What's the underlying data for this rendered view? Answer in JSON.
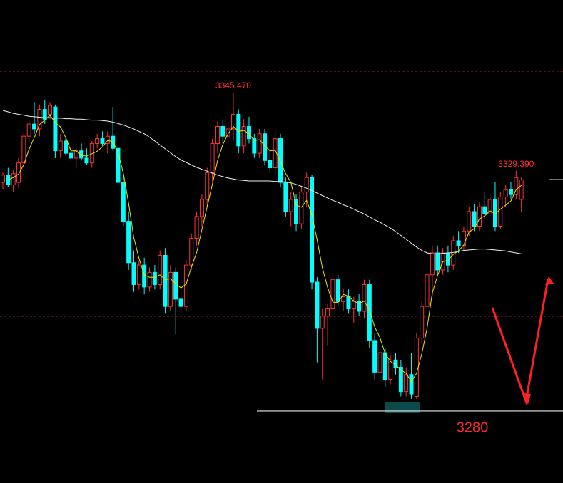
{
  "chart_data": {
    "type": "candlestick",
    "ylim": [
      3265.2,
      3364.5
    ],
    "up_color": "#ff3232",
    "down_color": "#00ffff",
    "open": [
      3327.0,
      3328.5,
      3326.5,
      3327.0,
      3331.0,
      3336.5,
      3339.0,
      3338.0,
      3342.0,
      3341.0,
      3342.5,
      3333.5,
      3335.5,
      3333.0,
      3332.0,
      3333.5,
      3332.0,
      3331.0,
      3335.0,
      3336.0,
      3335.0,
      3336.5,
      3334.0,
      3327.0,
      3319.0,
      3310.5,
      3306.0,
      3310.0,
      3305.5,
      3308.5,
      3306.0,
      3312.0,
      3301.5,
      3308.5,
      3303.0,
      3301.5,
      3310.0,
      3315.5,
      3320.0,
      3323.5,
      3329.0,
      3335.0,
      3338.5,
      3336.5,
      3338.0,
      3341.0,
      3334.5,
      3338.5,
      3336.0,
      3333.0,
      3337.0,
      3331.5,
      3330.0,
      3336.0,
      3327.0,
      3321.0,
      3323.5,
      3318.5,
      3325.0,
      3328.0,
      3306.5,
      3297.0,
      3299.5,
      3301.0,
      3307.0,
      3302.5,
      3303.5,
      3301.0,
      3302.5,
      3300.5,
      3306.0,
      3294.5,
      3288.0,
      3292.0,
      3286.5,
      3290.5,
      3289.0,
      3284.0,
      3287.5,
      3283.0,
      3295.0,
      3301.5,
      3308.0,
      3312.5,
      3309.0,
      3312.5,
      3310.0,
      3315.0,
      3314.0,
      3317.0,
      3321.0,
      3318.0,
      3322.0,
      3320.5,
      3323.5,
      3318.0,
      3324.0,
      3325.5,
      3324.5,
      3323.5
    ],
    "high": [
      3329.0,
      3330.0,
      3329.5,
      3332.0,
      3337.5,
      3340.0,
      3343.5,
      3343.0,
      3344.0,
      3343.5,
      3343.0,
      3337.0,
      3336.5,
      3334.5,
      3334.0,
      3335.0,
      3334.0,
      3335.5,
      3337.0,
      3337.5,
      3337.5,
      3342.5,
      3335.0,
      3328.0,
      3321.0,
      3313.0,
      3311.0,
      3311.5,
      3309.5,
      3310.0,
      3313.0,
      3313.5,
      3310.0,
      3309.5,
      3307.0,
      3311.0,
      3316.5,
      3321.0,
      3324.5,
      3330.0,
      3336.0,
      3339.5,
      3340.0,
      3339.0,
      3345.47,
      3342.0,
      3340.0,
      3340.5,
      3337.0,
      3338.0,
      3338.0,
      3334.0,
      3337.5,
      3337.0,
      3328.0,
      3325.0,
      3324.5,
      3326.0,
      3329.0,
      3328.5,
      3307.5,
      3301.0,
      3302.0,
      3308.0,
      3308.0,
      3305.0,
      3305.0,
      3303.5,
      3304.0,
      3307.0,
      3307.0,
      3296.0,
      3293.0,
      3293.0,
      3291.5,
      3292.0,
      3290.5,
      3289.0,
      3292.0,
      3296.0,
      3302.5,
      3309.0,
      3314.0,
      3314.0,
      3313.5,
      3314.0,
      3316.0,
      3317.0,
      3318.0,
      3322.0,
      3322.5,
      3323.0,
      3325.0,
      3324.5,
      3327.0,
      3325.0,
      3326.5,
      3327.0,
      3329.39,
      3328.0
    ],
    "low": [
      3325.5,
      3326.0,
      3325.0,
      3325.8,
      3330.0,
      3335.0,
      3337.0,
      3336.5,
      3339.0,
      3340.0,
      3332.0,
      3332.0,
      3332.5,
      3331.0,
      3330.0,
      3331.5,
      3330.5,
      3330.0,
      3334.0,
      3334.5,
      3333.0,
      3333.5,
      3326.0,
      3318.0,
      3309.0,
      3304.5,
      3305.0,
      3304.0,
      3304.5,
      3305.0,
      3305.0,
      3300.0,
      3300.5,
      3295.8,
      3300.0,
      3300.5,
      3309.0,
      3314.0,
      3318.0,
      3322.0,
      3327.0,
      3333.0,
      3335.0,
      3335.0,
      3335.5,
      3333.0,
      3333.0,
      3335.0,
      3332.0,
      3332.0,
      3330.5,
      3329.0,
      3328.5,
      3326.0,
      3320.0,
      3318.0,
      3317.0,
      3317.5,
      3322.0,
      3305.0,
      3290.0,
      3286.5,
      3293.5,
      3300.0,
      3301.5,
      3300.5,
      3300.0,
      3298.0,
      3299.5,
      3299.0,
      3293.0,
      3286.5,
      3287.0,
      3285.0,
      3285.5,
      3287.5,
      3283.0,
      3283.0,
      3282.5,
      3282.5,
      3294.0,
      3300.5,
      3303.5,
      3308.0,
      3308.0,
      3308.5,
      3309.0,
      3312.5,
      3313.0,
      3316.0,
      3317.0,
      3317.0,
      3319.5,
      3319.0,
      3317.0,
      3317.5,
      3322.0,
      3323.5,
      3323.5,
      3321.0
    ],
    "close": [
      3328.5,
      3326.5,
      3328.8,
      3331.0,
      3336.5,
      3339.0,
      3338.0,
      3342.0,
      3340.0,
      3342.8,
      3333.5,
      3335.5,
      3333.0,
      3332.0,
      3333.5,
      3332.0,
      3331.0,
      3335.0,
      3336.0,
      3335.0,
      3336.5,
      3334.0,
      3327.0,
      3319.0,
      3310.5,
      3306.0,
      3310.0,
      3305.5,
      3308.5,
      3306.0,
      3312.0,
      3301.5,
      3308.5,
      3303.0,
      3301.5,
      3310.0,
      3315.5,
      3320.0,
      3323.5,
      3329.0,
      3335.0,
      3338.5,
      3336.5,
      3338.0,
      3341.0,
      3334.5,
      3338.5,
      3336.0,
      3333.0,
      3337.0,
      3331.5,
      3330.0,
      3336.0,
      3327.0,
      3321.0,
      3323.5,
      3318.5,
      3325.0,
      3328.0,
      3306.5,
      3297.0,
      3299.5,
      3301.0,
      3307.0,
      3302.5,
      3303.5,
      3301.0,
      3302.5,
      3300.5,
      3306.0,
      3294.5,
      3288.0,
      3292.0,
      3286.5,
      3290.5,
      3289.0,
      3284.0,
      3287.5,
      3283.5,
      3295.0,
      3301.5,
      3308.0,
      3312.5,
      3309.0,
      3312.5,
      3310.0,
      3315.0,
      3314.0,
      3317.0,
      3321.0,
      3318.0,
      3322.0,
      3320.5,
      3323.5,
      3318.0,
      3324.0,
      3325.5,
      3324.5,
      3328.0,
      3327.5
    ],
    "series": [
      {
        "color": "#f0f0f0",
        "values": [
          3341.8,
          3341.5,
          3341.2,
          3341.0,
          3340.8,
          3340.6,
          3340.5,
          3340.4,
          3340.3,
          3340.3,
          3340.2,
          3340.2,
          3340.1,
          3340.1,
          3340.0,
          3340.0,
          3339.9,
          3339.8,
          3339.8,
          3339.7,
          3339.6,
          3339.4,
          3339.1,
          3338.8,
          3338.4,
          3338.0,
          3337.5,
          3337.0,
          3336.3,
          3335.5,
          3334.7,
          3333.9,
          3333.1,
          3332.3,
          3331.6,
          3331.1,
          3330.6,
          3330.1,
          3329.7,
          3329.3,
          3328.9,
          3328.5,
          3328.2,
          3327.9,
          3327.7,
          3327.5,
          3327.4,
          3327.3,
          3327.3,
          3327.3,
          3327.3,
          3327.3,
          3327.2,
          3327.2,
          3327.1,
          3326.9,
          3326.6,
          3326.2,
          3325.8,
          3325.3,
          3324.8,
          3324.3,
          3323.8,
          3323.3,
          3322.9,
          3322.4,
          3322.0,
          3321.5,
          3321.0,
          3320.5,
          3319.9,
          3319.3,
          3318.8,
          3318.2,
          3317.6,
          3316.9,
          3316.1,
          3315.3,
          3314.5,
          3313.7,
          3313.0,
          3312.5,
          3312.3,
          3312.3,
          3312.4,
          3312.5,
          3312.6,
          3312.8,
          3313.0,
          3313.1,
          3313.2,
          3313.3,
          3313.3,
          3313.2,
          3313.1,
          3313.0,
          3312.9,
          3312.7,
          3312.5,
          3312.3
        ]
      },
      {
        "color": "#e8e800",
        "values": [
          3327.5,
          3327.5,
          3328.0,
          3328.7,
          3330.7,
          3333.8,
          3336.2,
          3338.9,
          3339.8,
          3340.8,
          3339.3,
          3338.4,
          3336.2,
          3333.5,
          3333.5,
          3332.6,
          3332.4,
          3332.9,
          3333.4,
          3334.3,
          3335.6,
          3335.4,
          3333.1,
          3328.9,
          3322.7,
          3315.6,
          3311.4,
          3308.0,
          3307.5,
          3307.5,
          3308.0,
          3307.0,
          3307.2,
          3306.2,
          3305.3,
          3306.1,
          3309.6,
          3312.6,
          3317.3,
          3322.0,
          3326.6,
          3331.5,
          3334.8,
          3337.0,
          3338.5,
          3337.5,
          3337.7,
          3337.0,
          3335.6,
          3335.8,
          3334.5,
          3333.5,
          3333.6,
          3331.3,
          3328.8,
          3327.0,
          3322.4,
          3321.9,
          3323.3,
          3320.3,
          3315.2,
          3309.5,
          3305.4,
          3302.4,
          3302.3,
          3304.0,
          3303.6,
          3302.6,
          3302.1,
          3302.6,
          3300.8,
          3297.3,
          3295.1,
          3291.8,
          3290.2,
          3289.5,
          3288.4,
          3287.8,
          3286.0,
          3287.8,
          3291.8,
          3297.0,
          3304.3,
          3307.8,
          3310.7,
          3311.0,
          3312.2,
          3312.9,
          3314.1,
          3316.8,
          3317.5,
          3319.5,
          3320.1,
          3321.2,
          3320.5,
          3321.5,
          3322.3,
          3323.2,
          3325.5,
          3326.4
        ]
      }
    ],
    "annotations": [
      {
        "value": 3345.47,
        "label": "3345.470"
      },
      {
        "value": 3329.39,
        "label": "3329.390"
      }
    ],
    "support": 3280
  }
}
